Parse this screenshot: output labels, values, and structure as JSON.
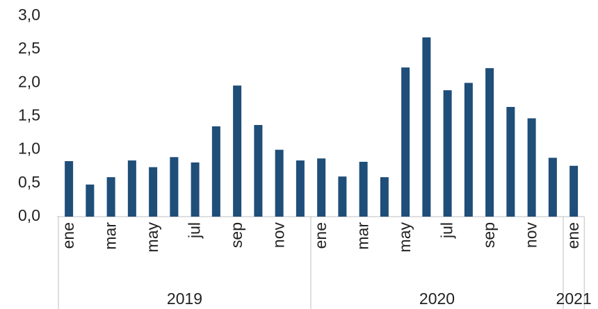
{
  "chart_data": {
    "type": "bar",
    "categories": [
      "ene",
      null,
      "mar",
      null,
      "may",
      null,
      "jul",
      null,
      "sep",
      null,
      "nov",
      null,
      "ene",
      null,
      "mar",
      null,
      "may",
      null,
      "jul",
      null,
      "sep",
      null,
      "nov",
      null,
      "ene"
    ],
    "year_groups": [
      "2019",
      "2020",
      "2021"
    ],
    "values": [
      0.83,
      0.48,
      0.59,
      0.84,
      0.74,
      0.89,
      0.81,
      1.35,
      1.96,
      1.37,
      1.0,
      0.84,
      0.87,
      0.6,
      0.82,
      0.59,
      2.23,
      2.68,
      1.89,
      2.0,
      2.22,
      1.64,
      1.47,
      0.88,
      0.76
    ],
    "color": "#1f4e79",
    "ylim": [
      0,
      3
    ],
    "yticks": [
      {
        "value": 0,
        "label": "0,0"
      },
      {
        "value": 0.5,
        "label": "0,5"
      },
      {
        "value": 1,
        "label": "1,0"
      },
      {
        "value": 1.5,
        "label": "1,5"
      },
      {
        "value": 2,
        "label": "2,0"
      },
      {
        "value": 2.5,
        "label": "2,5"
      },
      {
        "value": 3,
        "label": "3,0"
      }
    ],
    "grid": false
  }
}
